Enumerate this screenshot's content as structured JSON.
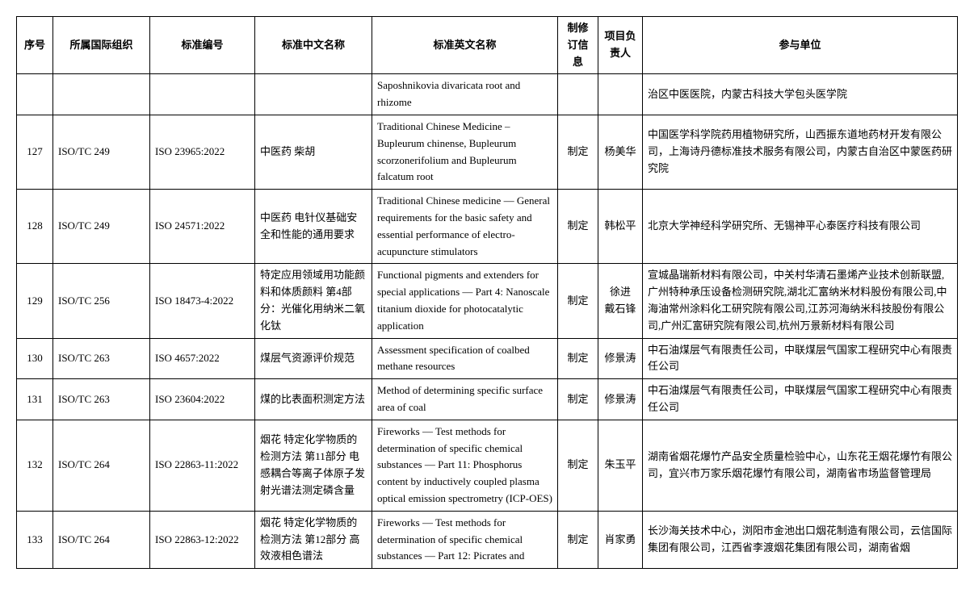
{
  "table": {
    "headers": {
      "seq": "序号",
      "org": "所属国际组织",
      "std_no": "标准编号",
      "name_zh": "标准中文名称",
      "name_en": "标准英文名称",
      "rev": "制修订信息",
      "leader": "项目负责人",
      "units": "参与单位"
    },
    "rows": [
      {
        "seq": "",
        "org": "",
        "std_no": "",
        "name_zh": "",
        "name_en": "Saposhnikovia divaricata root and rhizome",
        "rev": "",
        "leader": "",
        "units": "治区中医医院，内蒙古科技大学包头医学院"
      },
      {
        "seq": "127",
        "org": "ISO/TC 249",
        "std_no": "ISO 23965:2022",
        "name_zh": "中医药 柴胡",
        "name_en": "Traditional Chinese Medicine  – Bupleurum chinense, Bupleurum scorzonerifolium and Bupleurum falcatum root",
        "rev": "制定",
        "leader": "杨美华",
        "units": "中国医学科学院药用植物研究所，山西振东道地药材开发有限公司，上海诗丹德标准技术服务有限公司，内蒙古自治区中蒙医药研究院"
      },
      {
        "seq": "128",
        "org": "ISO/TC 249",
        "std_no": "ISO 24571:2022",
        "name_zh": "中医药 电针仪基础安全和性能的通用要求",
        "name_en": "Traditional Chinese medicine — General requirements for the basic safety and essential performance of electro-acupuncture stimulators",
        "rev": "制定",
        "leader": "韩松平",
        "units": "北京大学神经科学研究所、无锡神平心泰医疗科技有限公司"
      },
      {
        "seq": "129",
        "org": "ISO/TC 256",
        "std_no": "ISO 18473-4:2022",
        "name_zh": "特定应用领域用功能颜料和体质颜料 第4部分：光催化用纳米二氧化钛",
        "name_en": "Functional pigments and extenders for special applications — Part 4: Nanoscale titanium dioxide for photocatalytic application",
        "rev": "制定",
        "leader": "徐进 戴石锋",
        "units": "宣城晶瑞新材料有限公司，中关村华清石墨烯产业技术创新联盟,广州特种承压设备检测研究院,湖北汇富纳米材料股份有限公司,中海油常州涂料化工研究院有限公司,江苏河海纳米科技股份有限公司,广州汇富研究院有限公司,杭州万景新材料有限公司"
      },
      {
        "seq": "130",
        "org": "ISO/TC 263",
        "std_no": "ISO 4657:2022",
        "name_zh": "煤层气资源评价规范",
        "name_en": "Assessment specification of coalbed methane resources",
        "rev": "制定",
        "leader": "修景涛",
        "units": "中石油煤层气有限责任公司，中联煤层气国家工程研究中心有限责任公司"
      },
      {
        "seq": "131",
        "org": "ISO/TC 263",
        "std_no": "ISO 23604:2022",
        "name_zh": "煤的比表面积测定方法",
        "name_en": "Method of determining specific surface area of coal",
        "rev": "制定",
        "leader": "修景涛",
        "units": "中石油煤层气有限责任公司，中联煤层气国家工程研究中心有限责任公司"
      },
      {
        "seq": "132",
        "org": "ISO/TC 264",
        "std_no": "ISO 22863-11:2022",
        "name_zh": "烟花 特定化学物质的检测方法 第11部分 电感耦合等离子体原子发射光谱法测定磷含量",
        "name_en": "Fireworks — Test methods for determination of specific chemical substances — Part 11: Phosphorus content by inductively coupled plasma optical emission spectrometry (ICP-OES)",
        "rev": "制定",
        "leader": "朱玉平",
        "units": "湖南省烟花爆竹产品安全质量检验中心，山东花王烟花爆竹有限公司，宜兴市万家乐烟花爆竹有限公司，湖南省市场监督管理局"
      },
      {
        "seq": "133",
        "org": "ISO/TC 264",
        "std_no": "ISO 22863-12:2022",
        "name_zh": "烟花 特定化学物质的检测方法 第12部分 高效液相色谱法",
        "name_en": "Fireworks — Test methods for determination of specific chemical substances — Part 12: Picrates and",
        "rev": "制定",
        "leader": "肖家勇",
        "units": "长沙海关技术中心，浏阳市金池出口烟花制造有限公司，云信国际集团有限公司，江西省李渡烟花集团有限公司，湖南省烟"
      }
    ]
  }
}
